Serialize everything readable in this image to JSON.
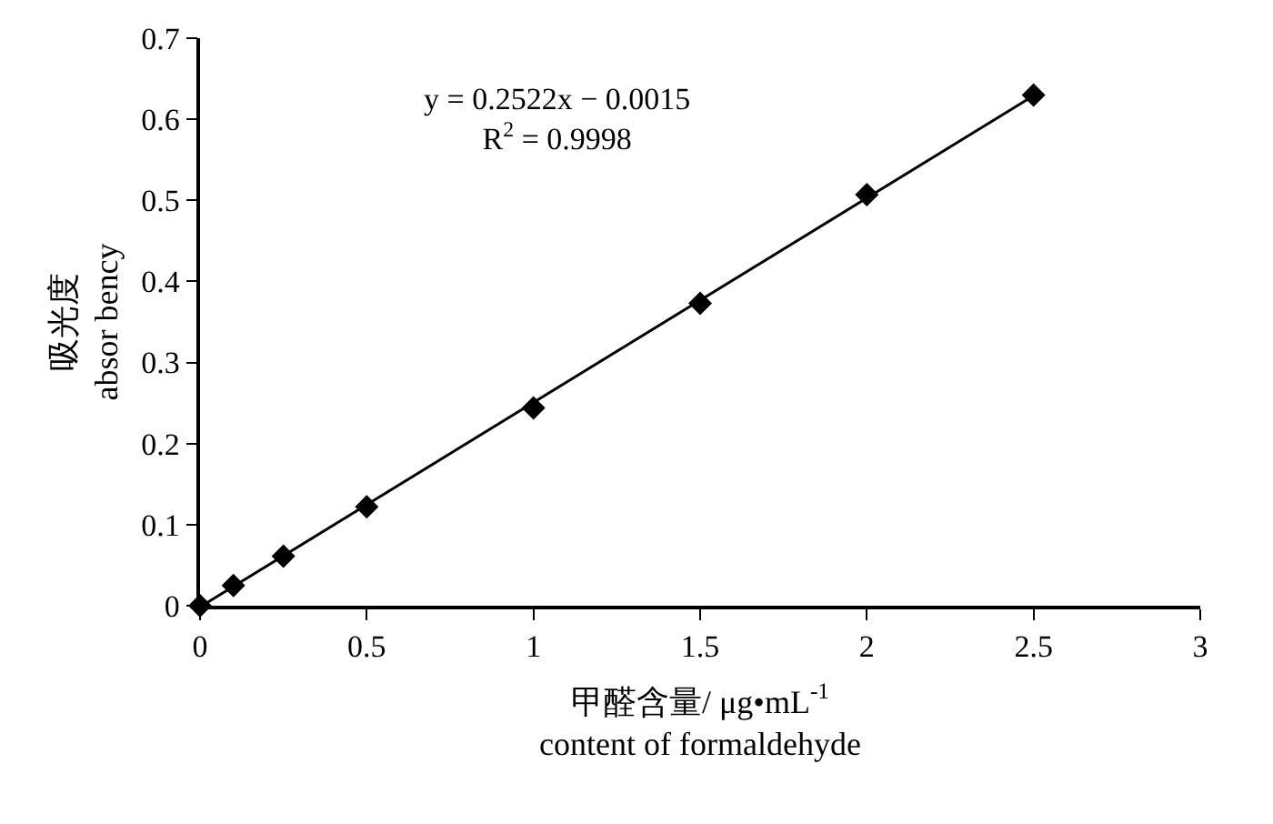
{
  "chart_data": {
    "type": "scatter",
    "xlabel": "甲醛含量/ μg•mL$^{-1}$\ncontent of formaldehyde",
    "ylabel": "吸光度\nabsor bency",
    "annotations": [
      "y = 0.2522x − 0.0015\nR$^{2}$ = 0.9998"
    ],
    "xlim": [
      0,
      3
    ],
    "xticks": [
      0,
      0.5,
      1,
      1.5,
      2,
      2.5,
      3
    ],
    "ylim": [
      0,
      0.7
    ],
    "yticks": [
      0,
      0.1,
      0.2,
      0.3,
      0.4,
      0.5,
      0.6,
      0.7
    ],
    "series": [
      {
        "type": "line",
        "color": "#000000",
        "marker": "none",
        "x": [
          0.006,
          2.5
        ],
        "values": [
          0,
          0.629
        ]
      },
      {
        "color": "#000000",
        "marker": "diamond",
        "x": [
          0,
          0.1,
          0.25,
          0.5,
          1,
          1.5,
          2,
          2.5
        ],
        "values": [
          0,
          0.025,
          0.061,
          0.122,
          0.244,
          0.373,
          0.507,
          0.63
        ]
      }
    ]
  }
}
